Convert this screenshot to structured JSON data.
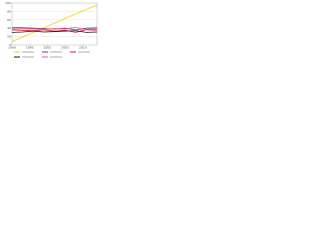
{
  "chart_data": {
    "type": "line",
    "x": [
      1990,
      1993,
      1996,
      1999,
      2002,
      2005,
      2008,
      2011,
      2014
    ],
    "xlim": [
      1990,
      2014
    ],
    "xticks": [
      1990,
      1995,
      2000,
      2005,
      2010
    ],
    "ylim": [
      0,
      100
    ],
    "yticks": [
      0,
      20,
      40,
      60,
      80,
      100
    ],
    "grid": true,
    "series": [
      {
        "color": "#f2d200",
        "values": [
          8,
          19,
          30,
          41,
          52,
          63,
          74,
          85,
          95
        ]
      },
      {
        "color": "#7a2f8a",
        "values": [
          42,
          41,
          40,
          39,
          38,
          40,
          36,
          40,
          41
        ]
      },
      {
        "color": "#d01c1c",
        "values": [
          36,
          35,
          34,
          36,
          33,
          35,
          30,
          37,
          38
        ]
      },
      {
        "color": "#111111",
        "values": [
          30,
          31,
          33,
          31,
          32,
          33,
          34,
          30,
          31
        ]
      },
      {
        "color": "#e05a9a",
        "values": [
          38,
          39,
          38,
          37,
          39,
          38,
          42,
          36,
          35
        ]
      }
    ]
  }
}
